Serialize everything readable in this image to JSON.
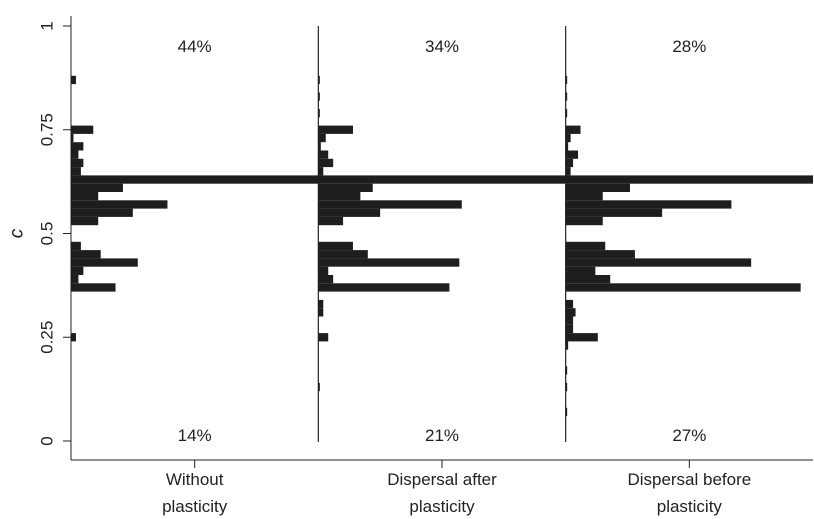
{
  "chart_data": {
    "type": "bar",
    "orientation": "horizontal",
    "ylabel": "c",
    "ylim": [
      0,
      1
    ],
    "yticks": [
      {
        "value": 0,
        "label": "0"
      },
      {
        "value": 0.25,
        "label": "0.25"
      },
      {
        "value": 0.5,
        "label": "0.5"
      },
      {
        "value": 0.75,
        "label": "0.75"
      },
      {
        "value": 1,
        "label": "1"
      }
    ],
    "grid": false,
    "legend": "none",
    "bar_color": "#1e1e1e",
    "bin_height": 0.02,
    "panels": [
      {
        "label_lines": [
          "Without",
          "plasticity"
        ],
        "top_percent": "44%",
        "bottom_percent": "14%",
        "bins": [
          {
            "c": 0.87,
            "x": 0.02
          },
          {
            "c": 0.75,
            "x": 0.09
          },
          {
            "c": 0.73,
            "x": 0.01
          },
          {
            "c": 0.71,
            "x": 0.05
          },
          {
            "c": 0.69,
            "x": 0.03
          },
          {
            "c": 0.67,
            "x": 0.05
          },
          {
            "c": 0.65,
            "x": 0.04
          },
          {
            "c": 0.63,
            "x": 1.0
          },
          {
            "c": 0.61,
            "x": 0.21
          },
          {
            "c": 0.59,
            "x": 0.11
          },
          {
            "c": 0.57,
            "x": 0.39
          },
          {
            "c": 0.55,
            "x": 0.25
          },
          {
            "c": 0.53,
            "x": 0.11
          },
          {
            "c": 0.47,
            "x": 0.04
          },
          {
            "c": 0.45,
            "x": 0.12
          },
          {
            "c": 0.43,
            "x": 0.27
          },
          {
            "c": 0.41,
            "x": 0.05
          },
          {
            "c": 0.39,
            "x": 0.03
          },
          {
            "c": 0.37,
            "x": 0.18
          },
          {
            "c": 0.25,
            "x": 0.02
          }
        ]
      },
      {
        "label_lines": [
          "Dispersal after",
          "plasticity"
        ],
        "top_percent": "34%",
        "bottom_percent": "21%",
        "bins": [
          {
            "c": 0.87,
            "x": 0.005
          },
          {
            "c": 0.83,
            "x": 0.005
          },
          {
            "c": 0.79,
            "x": 0.005
          },
          {
            "c": 0.75,
            "x": 0.14
          },
          {
            "c": 0.73,
            "x": 0.03
          },
          {
            "c": 0.71,
            "x": 0.01
          },
          {
            "c": 0.69,
            "x": 0.04
          },
          {
            "c": 0.67,
            "x": 0.06
          },
          {
            "c": 0.65,
            "x": 0.02
          },
          {
            "c": 0.63,
            "x": 1.0
          },
          {
            "c": 0.61,
            "x": 0.22
          },
          {
            "c": 0.59,
            "x": 0.17
          },
          {
            "c": 0.57,
            "x": 0.58
          },
          {
            "c": 0.55,
            "x": 0.25
          },
          {
            "c": 0.53,
            "x": 0.1
          },
          {
            "c": 0.47,
            "x": 0.14
          },
          {
            "c": 0.45,
            "x": 0.2
          },
          {
            "c": 0.43,
            "x": 0.57
          },
          {
            "c": 0.41,
            "x": 0.04
          },
          {
            "c": 0.39,
            "x": 0.06
          },
          {
            "c": 0.37,
            "x": 0.53
          },
          {
            "c": 0.33,
            "x": 0.02
          },
          {
            "c": 0.31,
            "x": 0.02
          },
          {
            "c": 0.25,
            "x": 0.04
          },
          {
            "c": 0.13,
            "x": 0.005
          }
        ]
      },
      {
        "label_lines": [
          "Dispersal before",
          "plasticity"
        ],
        "top_percent": "28%",
        "bottom_percent": "27%",
        "bins": [
          {
            "c": 0.87,
            "x": 0.005
          },
          {
            "c": 0.83,
            "x": 0.005
          },
          {
            "c": 0.79,
            "x": 0.005
          },
          {
            "c": 0.75,
            "x": 0.06
          },
          {
            "c": 0.73,
            "x": 0.02
          },
          {
            "c": 0.71,
            "x": 0.01
          },
          {
            "c": 0.69,
            "x": 0.05
          },
          {
            "c": 0.67,
            "x": 0.03
          },
          {
            "c": 0.65,
            "x": 0.02
          },
          {
            "c": 0.63,
            "x": 1.0
          },
          {
            "c": 0.61,
            "x": 0.26
          },
          {
            "c": 0.59,
            "x": 0.15
          },
          {
            "c": 0.57,
            "x": 0.67
          },
          {
            "c": 0.55,
            "x": 0.39
          },
          {
            "c": 0.53,
            "x": 0.15
          },
          {
            "c": 0.47,
            "x": 0.16
          },
          {
            "c": 0.45,
            "x": 0.28
          },
          {
            "c": 0.43,
            "x": 0.75
          },
          {
            "c": 0.41,
            "x": 0.12
          },
          {
            "c": 0.39,
            "x": 0.18
          },
          {
            "c": 0.37,
            "x": 0.95
          },
          {
            "c": 0.33,
            "x": 0.03
          },
          {
            "c": 0.31,
            "x": 0.04
          },
          {
            "c": 0.29,
            "x": 0.03
          },
          {
            "c": 0.27,
            "x": 0.03
          },
          {
            "c": 0.25,
            "x": 0.13
          },
          {
            "c": 0.23,
            "x": 0.01
          },
          {
            "c": 0.17,
            "x": 0.005
          },
          {
            "c": 0.13,
            "x": 0.005
          },
          {
            "c": 0.07,
            "x": 0.005
          }
        ]
      }
    ]
  }
}
